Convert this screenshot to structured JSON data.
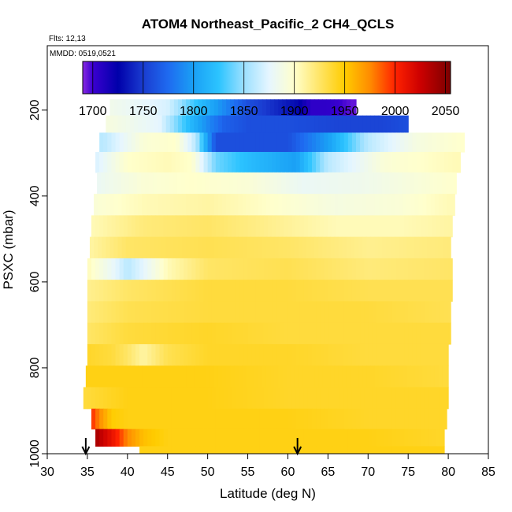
{
  "chart_data": {
    "type": "heatmap",
    "title": "ATOM4 Northeast_Pacific_2 CH4_QCLS",
    "flights_label": "Flts: 12,13",
    "mmdd_label": "MMDD: 0519,0521",
    "xlabel": "Latitude (deg N)",
    "ylabel": "PSXC (mbar)",
    "xlim": [
      30,
      85
    ],
    "ylim": [
      1000,
      50
    ],
    "y_reversed": true,
    "x_ticks": [
      30,
      35,
      40,
      45,
      50,
      55,
      60,
      65,
      70,
      75,
      80,
      85
    ],
    "y_ticks": [
      200,
      400,
      600,
      800,
      1000
    ],
    "grid": false,
    "colorbar": {
      "range": [
        1690,
        2055
      ],
      "ticks": [
        1700,
        1750,
        1800,
        1850,
        1900,
        1950,
        2000,
        2050
      ],
      "colors": [
        {
          "value": 1690,
          "color": "#8a2be2"
        },
        {
          "value": 1700,
          "color": "#3a00d0"
        },
        {
          "value": 1725,
          "color": "#0000aa"
        },
        {
          "value": 1750,
          "color": "#1a3cd0"
        },
        {
          "value": 1775,
          "color": "#1e6bf0"
        },
        {
          "value": 1800,
          "color": "#1aa0f5"
        },
        {
          "value": 1825,
          "color": "#2cc4ff"
        },
        {
          "value": 1850,
          "color": "#9ce0ff"
        },
        {
          "value": 1875,
          "color": "#e6f6ff"
        },
        {
          "value": 1900,
          "color": "#ffffcc"
        },
        {
          "value": 1925,
          "color": "#ffe566"
        },
        {
          "value": 1950,
          "color": "#ffcc00"
        },
        {
          "value": 1975,
          "color": "#ff8c00"
        },
        {
          "value": 2000,
          "color": "#ff2200"
        },
        {
          "value": 2025,
          "color": "#cc0000"
        },
        {
          "value": 2055,
          "color": "#7a0000"
        }
      ]
    },
    "profiles": [
      {
        "p": 195,
        "lat_min": 37.8,
        "lat_max": 68.5,
        "lat": [
          38,
          45,
          49,
          52,
          55,
          58,
          61,
          63,
          65,
          68
        ],
        "values": [
          1885,
          1870,
          1820,
          1790,
          1760,
          1745,
          1730,
          1705,
          1705,
          1695
        ]
      },
      {
        "p": 230,
        "lat_min": 37.3,
        "lat_max": 75.0,
        "lat": [
          38,
          44,
          48,
          50,
          52,
          55,
          60,
          66,
          72,
          75
        ],
        "values": [
          1890,
          1875,
          1815,
          1790,
          1770,
          1760,
          1760,
          1755,
          1755,
          1760
        ]
      },
      {
        "p": 275,
        "lat_min": 36.5,
        "lat_max": 82.0,
        "lat": [
          37,
          42,
          46,
          48.5,
          51,
          55,
          60,
          65,
          70,
          76,
          82
        ],
        "values": [
          1860,
          1895,
          1900,
          1860,
          1760,
          1760,
          1760,
          1800,
          1860,
          1890,
          1900
        ]
      },
      {
        "p": 320,
        "lat_min": 36.0,
        "lat_max": 81.5,
        "lat": [
          36,
          40,
          45,
          48,
          51,
          55,
          58,
          61,
          65,
          72,
          81
        ],
        "values": [
          1870,
          1900,
          1905,
          1900,
          1840,
          1820,
          1810,
          1800,
          1860,
          1895,
          1905
        ]
      },
      {
        "p": 370,
        "lat_min": 36.2,
        "lat_max": 81.0,
        "lat": [
          36,
          42,
          48,
          55,
          62,
          70,
          81
        ],
        "values": [
          1880,
          1895,
          1900,
          1895,
          1880,
          1885,
          1900
        ]
      },
      {
        "p": 420,
        "lat_min": 35.8,
        "lat_max": 80.8,
        "lat": [
          36,
          42,
          50,
          58,
          66,
          74,
          80
        ],
        "values": [
          1895,
          1905,
          1910,
          1900,
          1890,
          1895,
          1905
        ]
      },
      {
        "p": 470,
        "lat_min": 35.5,
        "lat_max": 80.5,
        "lat": [
          35.5,
          42,
          50,
          58,
          66,
          74,
          80
        ],
        "values": [
          1905,
          1920,
          1925,
          1915,
          1905,
          1905,
          1910
        ]
      },
      {
        "p": 520,
        "lat_min": 35.3,
        "lat_max": 80.3,
        "lat": [
          35.3,
          40,
          50,
          60,
          70,
          80
        ],
        "values": [
          1910,
          1925,
          1930,
          1925,
          1915,
          1920
        ]
      },
      {
        "p": 570,
        "lat_min": 35.0,
        "lat_max": 80.5,
        "lat": [
          35,
          38,
          40,
          42,
          45,
          50,
          60,
          70,
          80
        ],
        "values": [
          1905,
          1880,
          1860,
          1875,
          1905,
          1925,
          1930,
          1920,
          1925
        ]
      },
      {
        "p": 620,
        "lat_min": 35.0,
        "lat_max": 80.5,
        "lat": [
          35,
          40,
          50,
          60,
          70,
          80
        ],
        "values": [
          1915,
          1925,
          1935,
          1935,
          1930,
          1930
        ]
      },
      {
        "p": 670,
        "lat_min": 35.0,
        "lat_max": 80.3,
        "lat": [
          35,
          40,
          50,
          60,
          70,
          80
        ],
        "values": [
          1920,
          1930,
          1935,
          1935,
          1935,
          1930
        ]
      },
      {
        "p": 720,
        "lat_min": 35.0,
        "lat_max": 80.3,
        "lat": [
          35,
          40,
          50,
          60,
          70,
          80
        ],
        "values": [
          1925,
          1935,
          1940,
          1935,
          1935,
          1935
        ]
      },
      {
        "p": 770,
        "lat_min": 35.0,
        "lat_max": 80.0,
        "lat": [
          35,
          38,
          40,
          42,
          45,
          50,
          60,
          70,
          80
        ],
        "values": [
          1940,
          1935,
          1925,
          1910,
          1930,
          1940,
          1940,
          1935,
          1935
        ]
      },
      {
        "p": 820,
        "lat_min": 34.8,
        "lat_max": 80.0,
        "lat": [
          35,
          40,
          50,
          60,
          70,
          80
        ],
        "values": [
          1945,
          1945,
          1945,
          1940,
          1940,
          1935
        ]
      },
      {
        "p": 870,
        "lat_min": 34.5,
        "lat_max": 80.0,
        "lat": [
          34.5,
          40,
          50,
          60,
          70,
          80
        ],
        "values": [
          1935,
          1945,
          1945,
          1940,
          1940,
          1940
        ]
      },
      {
        "p": 920,
        "lat_min": 35.5,
        "lat_max": 79.8,
        "lat": [
          35.5,
          36.5,
          38,
          40,
          45,
          50,
          60,
          70,
          80
        ],
        "values": [
          2000,
          1975,
          1950,
          1945,
          1945,
          1945,
          1945,
          1940,
          1940
        ]
      },
      {
        "p": 965,
        "lat_min": 36.0,
        "lat_max": 79.5,
        "lat": [
          36,
          37,
          38.5,
          40,
          42,
          45,
          50,
          60,
          70,
          79.5
        ],
        "values": [
          2040,
          2025,
          2005,
          1975,
          1955,
          1945,
          1945,
          1945,
          1945,
          1940
        ]
      },
      {
        "p": 1000,
        "lat_min": 41.5,
        "lat_max": 79.5,
        "lat": [
          41.5,
          50,
          60,
          70,
          79.5
        ],
        "values": [
          1945,
          1945,
          1945,
          1945,
          1945
        ]
      }
    ],
    "markers": [
      {
        "lat": 34.8,
        "direction": "down"
      },
      {
        "lat": 61.2,
        "direction": "down"
      }
    ]
  }
}
